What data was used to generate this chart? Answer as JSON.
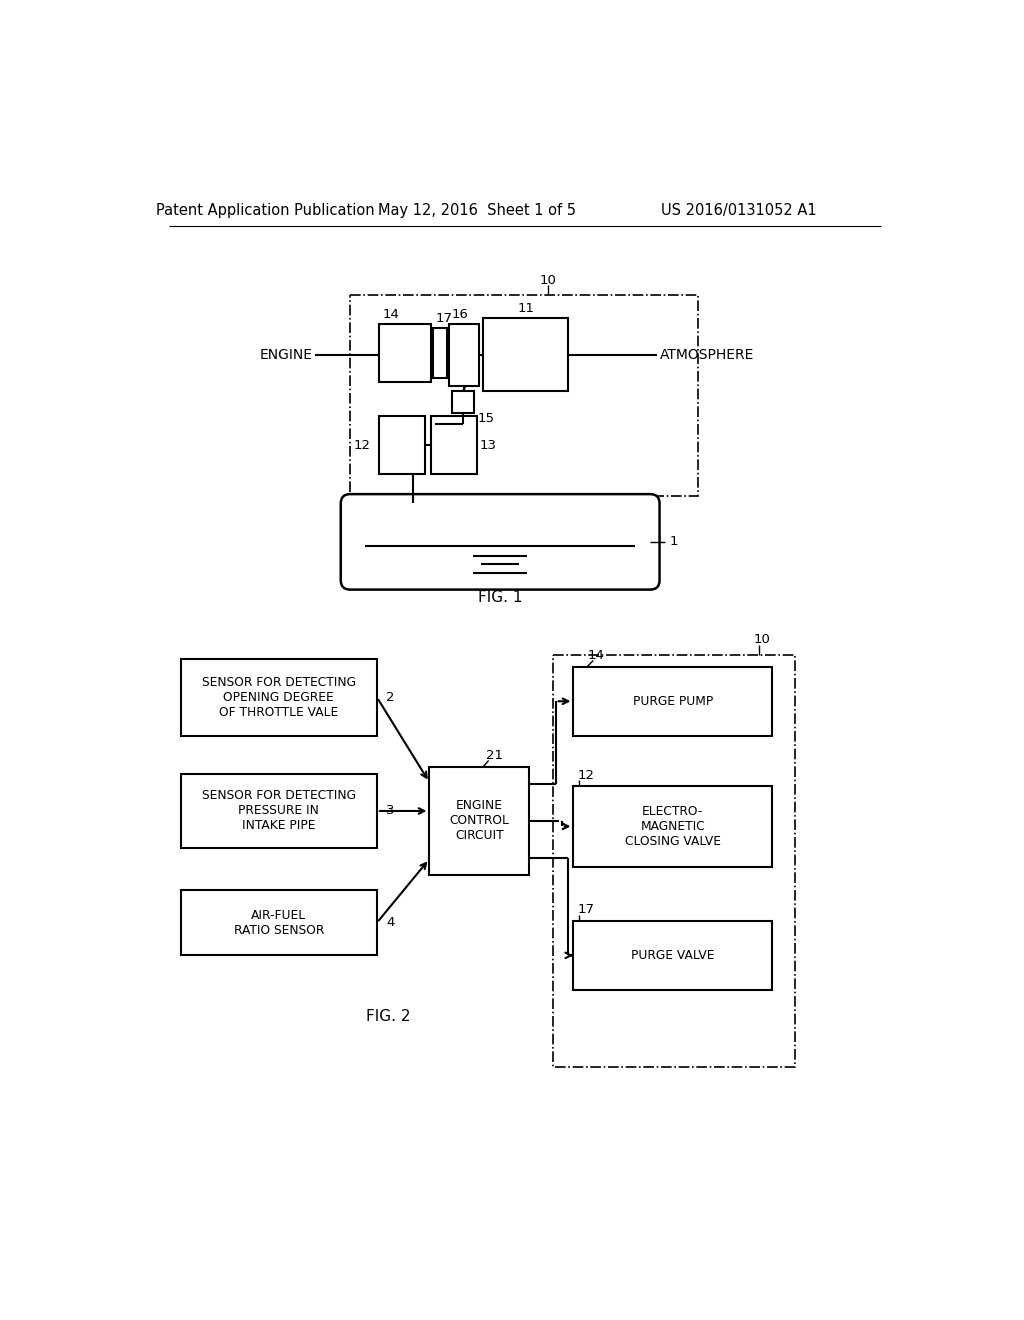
{
  "bg_color": "#ffffff",
  "header_left": "Patent Application Publication",
  "header_mid": "May 12, 2016  Sheet 1 of 5",
  "header_right": "US 2016/0131052 A1",
  "fig1_label": "FIG. 1",
  "fig2_label": "FIG. 2"
}
